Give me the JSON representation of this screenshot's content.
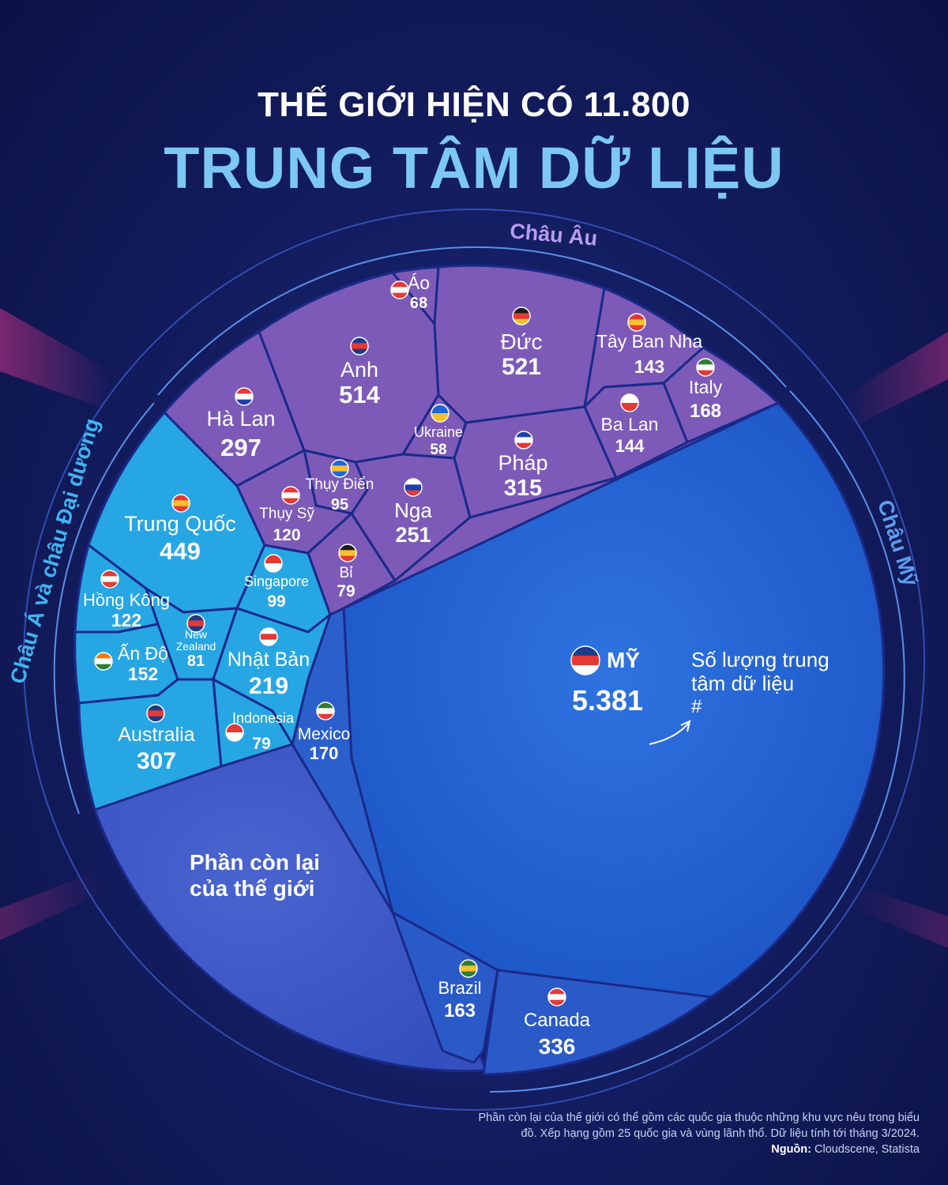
{
  "title": {
    "line1": "THẾ GIỚI HIỆN CÓ 11.800",
    "line2": "TRUNG TÂM DỮ LIỆU"
  },
  "chart_data": {
    "type": "voronoi-treemap",
    "total": "11.800",
    "groups": [
      {
        "name": "Châu Âu",
        "color": "#7d5ab8"
      },
      {
        "name": "Châu Á và châu Đại dương",
        "color": "#27a6e4"
      },
      {
        "name": "Châu Mỹ",
        "color": "#1f5fcf"
      }
    ],
    "items": [
      {
        "name": "Áo",
        "value": "68",
        "group": "Châu Âu"
      },
      {
        "name": "Đức",
        "value": "521",
        "group": "Châu Âu"
      },
      {
        "name": "Tây Ban Nha",
        "value": "143",
        "group": "Châu Âu"
      },
      {
        "name": "Anh",
        "value": "514",
        "group": "Châu Âu"
      },
      {
        "name": "Italy",
        "value": "168",
        "group": "Châu Âu"
      },
      {
        "name": "Hà Lan",
        "value": "297",
        "group": "Châu Âu"
      },
      {
        "name": "Ukraine",
        "value": "58",
        "group": "Châu Âu"
      },
      {
        "name": "Ba Lan",
        "value": "144",
        "group": "Châu Âu"
      },
      {
        "name": "Pháp",
        "value": "315",
        "group": "Châu Âu"
      },
      {
        "name": "Thụy Điển",
        "value": "95",
        "group": "Châu Âu"
      },
      {
        "name": "Nga",
        "value": "251",
        "group": "Châu Âu"
      },
      {
        "name": "Thụy Sỹ",
        "value": "120",
        "group": "Châu Âu"
      },
      {
        "name": "Bỉ",
        "value": "79",
        "group": "Châu Âu"
      },
      {
        "name": "Trung Quốc",
        "value": "449",
        "group": "Châu Á và châu Đại dương"
      },
      {
        "name": "Singapore",
        "value": "99",
        "group": "Châu Á và châu Đại dương"
      },
      {
        "name": "Hồng Kông",
        "value": "122",
        "group": "Châu Á và châu Đại dương"
      },
      {
        "name": "New Zealand",
        "value": "81",
        "group": "Châu Á và châu Đại dương"
      },
      {
        "name": "Ấn Độ",
        "value": "152",
        "group": "Châu Á và châu Đại dương"
      },
      {
        "name": "Nhật Bản",
        "value": "219",
        "group": "Châu Á và châu Đại dương"
      },
      {
        "name": "Australia",
        "value": "307",
        "group": "Châu Á và châu Đại dương"
      },
      {
        "name": "Indonesia",
        "value": "79",
        "group": "Châu Á và châu Đại dương"
      },
      {
        "name": "Mexico",
        "value": "170",
        "group": "Châu Mỹ"
      },
      {
        "name": "MỸ",
        "value": "5.381",
        "group": "Châu Mỹ"
      },
      {
        "name": "Brazil",
        "value": "163",
        "group": "Châu Mỹ"
      },
      {
        "name": "Canada",
        "value": "336",
        "group": "Châu Mỹ"
      },
      {
        "name": "Phần còn lại của thế giới",
        "value": "",
        "group": ""
      }
    ],
    "annotation": "Số lượng trung tâm dữ liệu #"
  },
  "annotation": {
    "line1": "Số lượng trung",
    "line2": "tâm dữ liệu",
    "line3": "#"
  },
  "footnote": {
    "line1": "Phần còn lại của thế giới có thể gồm các quốc gia thuộc những khu vực nêu trong biểu",
    "line2": "đồ. Xếp hạng gồm 25 quốc gia và vùng lãnh thổ. Dữ liệu tính tới tháng 3/2024.",
    "source_label": "Nguồn:",
    "source_value": " Cloudscene, Statista"
  },
  "colors": {
    "europe": "#7d5ab8",
    "asia": "#27a6e4",
    "americas": "#1f5fcf",
    "rest": "#3a5ac8",
    "title_accent": "#7cc8f2",
    "border": "#1a2a8a"
  }
}
